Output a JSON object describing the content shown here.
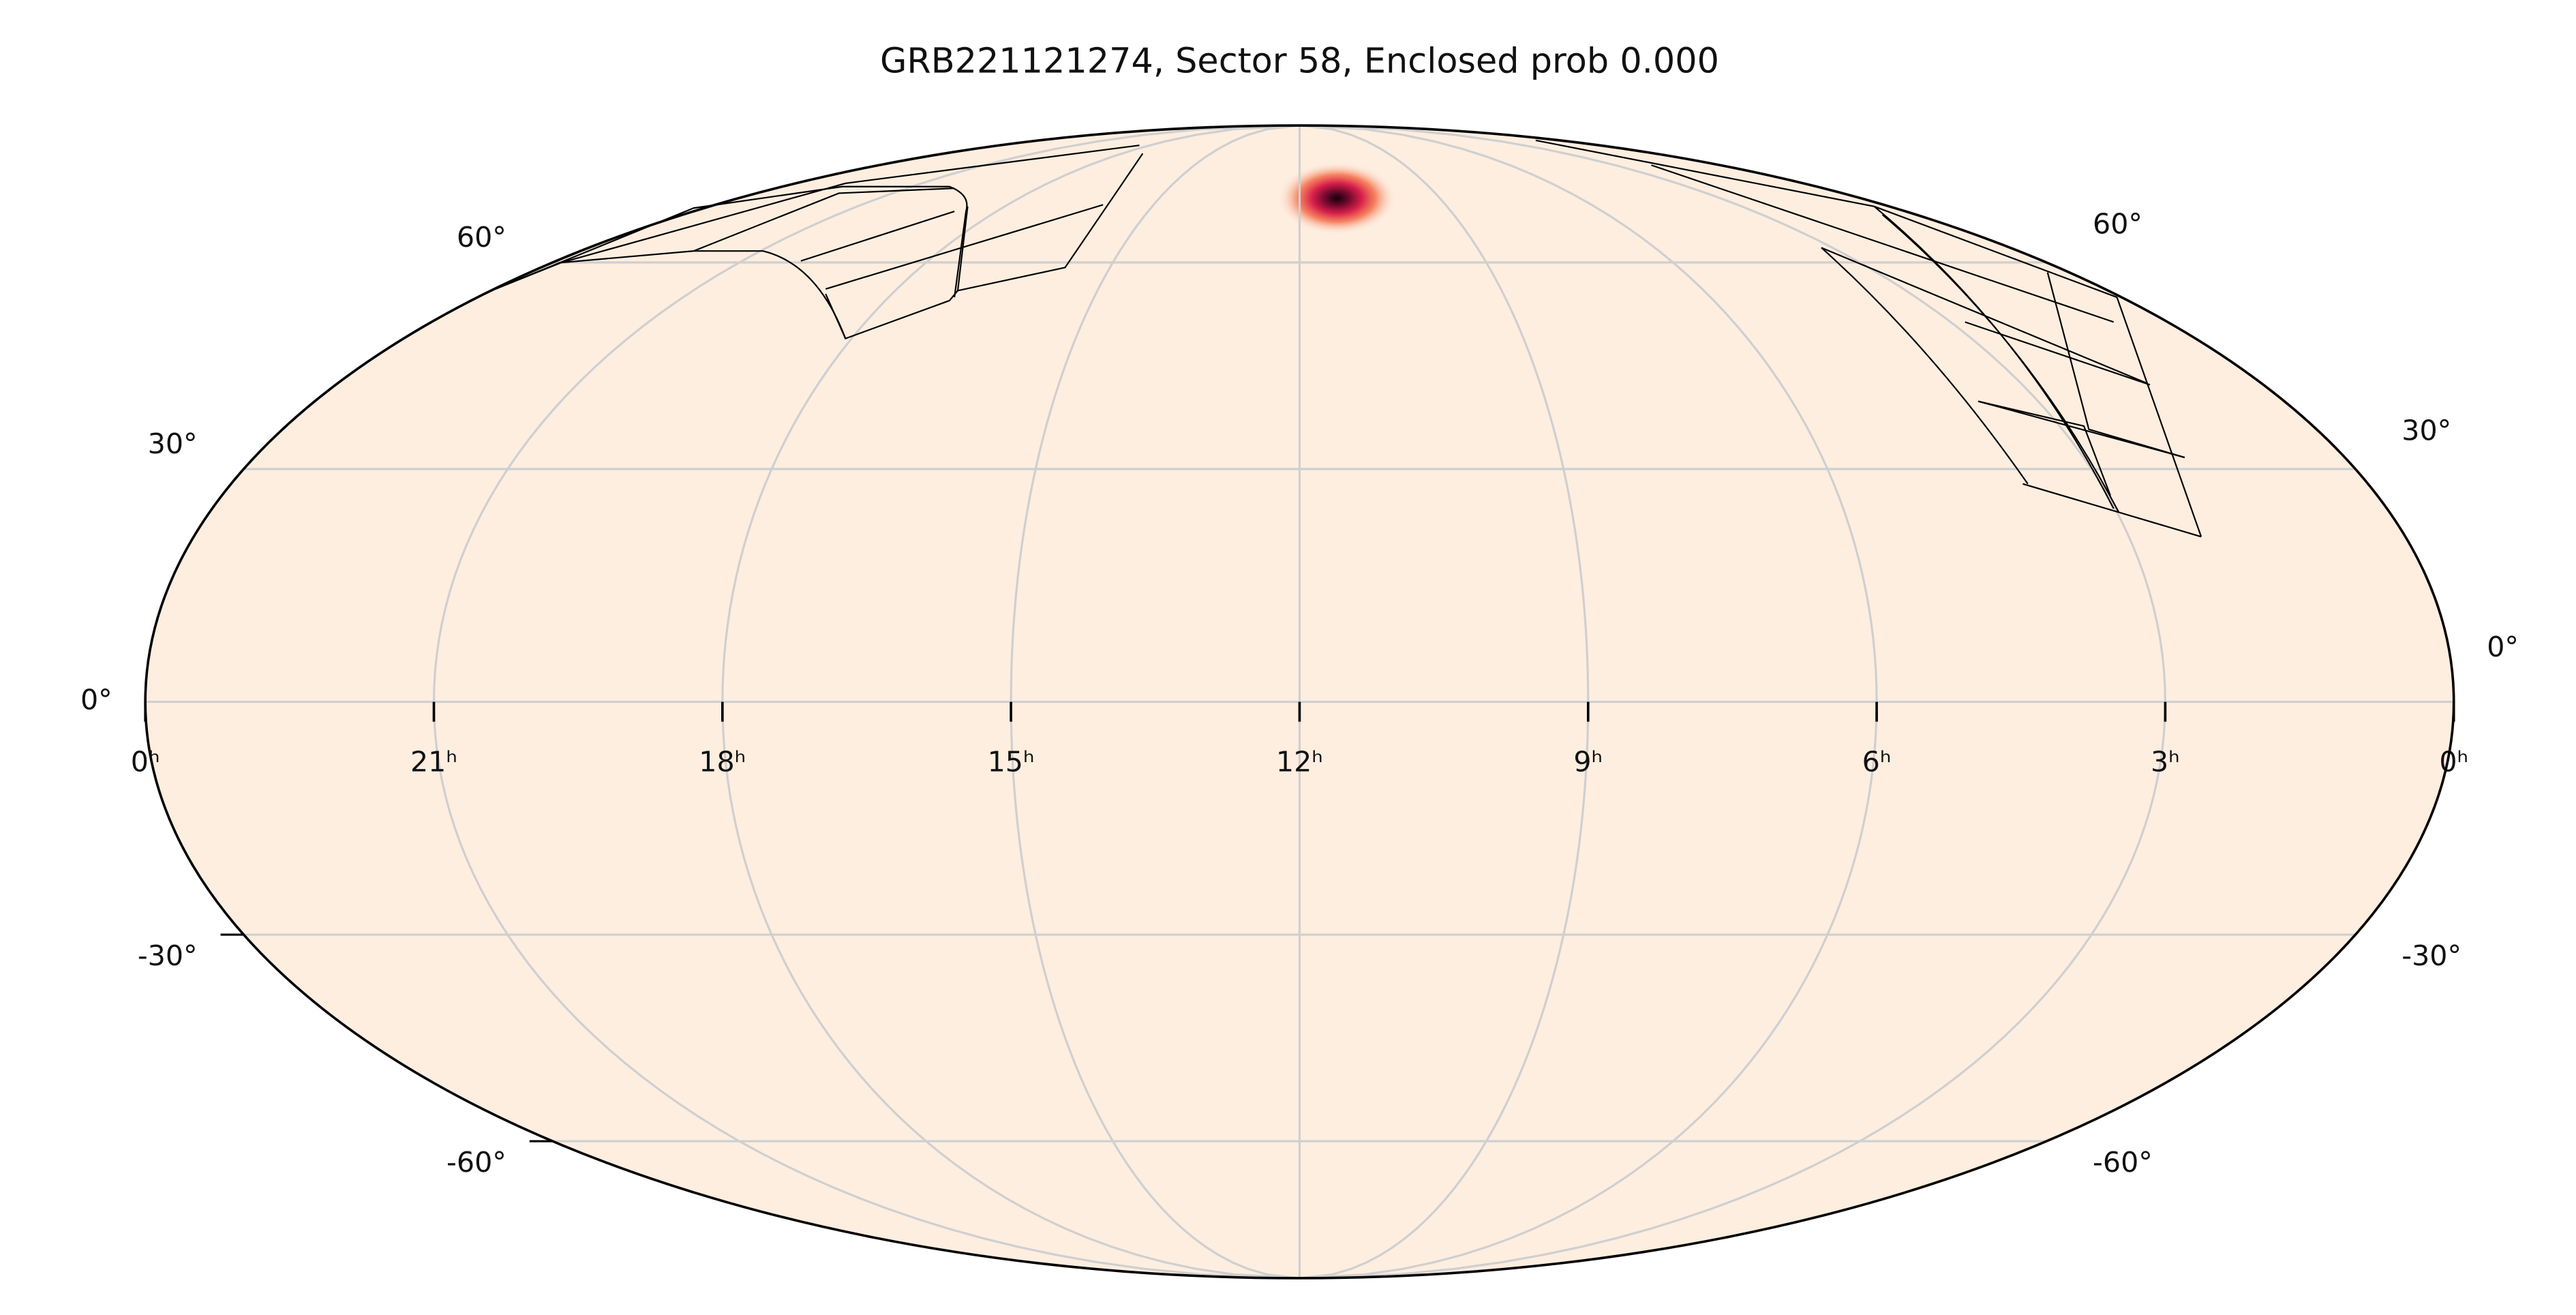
{
  "chart_data": {
    "type": "mollweide",
    "title": "GRB221121274, Sector 58, Enclosed prob 0.000",
    "xlim": [
      24,
      0
    ],
    "ylim": [
      -90,
      90
    ],
    "xticks": [
      {
        "value": 24,
        "label": "0ʰ"
      },
      {
        "value": 21,
        "label": "21ʰ"
      },
      {
        "value": 18,
        "label": "18ʰ"
      },
      {
        "value": 15,
        "label": "15ʰ"
      },
      {
        "value": 12,
        "label": "12ʰ"
      },
      {
        "value": 9,
        "label": "9ʰ"
      },
      {
        "value": 6,
        "label": "6ʰ"
      },
      {
        "value": 3,
        "label": "3ʰ"
      },
      {
        "value": 0,
        "label": "0ʰ"
      }
    ],
    "yticks": [
      {
        "value": -60,
        "label": "-60°"
      },
      {
        "value": -30,
        "label": "-30°"
      },
      {
        "value": 0,
        "label": "0°"
      },
      {
        "value": 30,
        "label": "30°"
      },
      {
        "value": 60,
        "label": "60°"
      }
    ],
    "grid": true,
    "color": "#fdeee0",
    "source": {
      "ra": 11.2,
      "dec": 71.3
    }
  }
}
